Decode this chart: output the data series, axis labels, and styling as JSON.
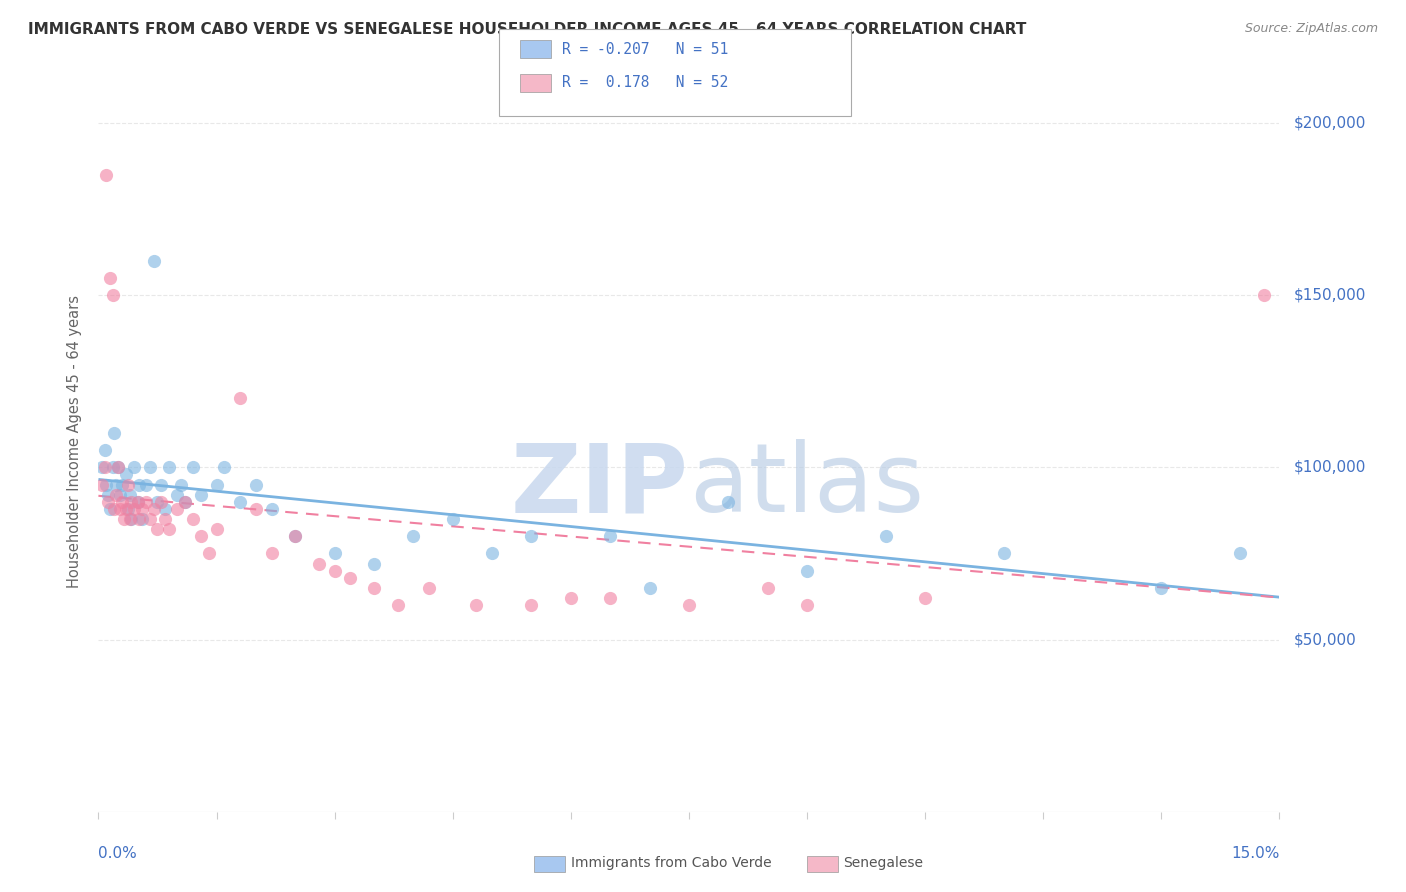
{
  "title": "IMMIGRANTS FROM CABO VERDE VS SENEGALESE HOUSEHOLDER INCOME AGES 45 - 64 YEARS CORRELATION CHART",
  "source": "Source: ZipAtlas.com",
  "ylabel": "Householder Income Ages 45 - 64 years",
  "xlim": [
    0.0,
    15.0
  ],
  "ylim": [
    0,
    215000
  ],
  "cabo_verde_color": "#7ab3e0",
  "cabo_verde_light": "#a8c8f0",
  "senegalese_color": "#f080a0",
  "senegalese_light": "#f5b8c8",
  "R_cv": -0.207,
  "N_cv": 51,
  "R_sn": 0.178,
  "N_sn": 52,
  "cabo_verde_x": [
    0.05,
    0.08,
    0.1,
    0.12,
    0.15,
    0.18,
    0.2,
    0.22,
    0.25,
    0.28,
    0.3,
    0.35,
    0.38,
    0.4,
    0.42,
    0.45,
    0.5,
    0.52,
    0.55,
    0.6,
    0.65,
    0.7,
    0.75,
    0.8,
    0.85,
    0.9,
    1.0,
    1.05,
    1.1,
    1.2,
    1.3,
    1.5,
    1.6,
    1.8,
    2.0,
    2.2,
    2.5,
    3.0,
    3.5,
    4.0,
    4.5,
    5.0,
    5.5,
    6.5,
    7.0,
    8.0,
    9.0,
    10.0,
    11.5,
    13.5,
    14.5
  ],
  "cabo_verde_y": [
    100000,
    105000,
    95000,
    92000,
    88000,
    100000,
    110000,
    95000,
    100000,
    92000,
    95000,
    98000,
    88000,
    92000,
    85000,
    100000,
    90000,
    95000,
    85000,
    95000,
    100000,
    160000,
    90000,
    95000,
    88000,
    100000,
    92000,
    95000,
    90000,
    100000,
    92000,
    95000,
    100000,
    90000,
    95000,
    88000,
    80000,
    75000,
    72000,
    80000,
    85000,
    75000,
    80000,
    80000,
    65000,
    90000,
    70000,
    80000,
    75000,
    65000,
    75000
  ],
  "senegalese_x": [
    0.05,
    0.08,
    0.1,
    0.12,
    0.15,
    0.18,
    0.2,
    0.22,
    0.25,
    0.28,
    0.3,
    0.32,
    0.35,
    0.38,
    0.4,
    0.42,
    0.45,
    0.5,
    0.52,
    0.55,
    0.6,
    0.65,
    0.7,
    0.75,
    0.8,
    0.85,
    0.9,
    1.0,
    1.1,
    1.2,
    1.3,
    1.4,
    1.5,
    1.8,
    2.0,
    2.2,
    2.5,
    2.8,
    3.0,
    3.2,
    3.5,
    3.8,
    4.2,
    4.8,
    5.5,
    6.0,
    6.5,
    7.5,
    8.5,
    9.0,
    10.5,
    14.8
  ],
  "senegalese_y": [
    95000,
    100000,
    185000,
    90000,
    155000,
    150000,
    88000,
    92000,
    100000,
    88000,
    90000,
    85000,
    88000,
    95000,
    85000,
    90000,
    88000,
    90000,
    85000,
    88000,
    90000,
    85000,
    88000,
    82000,
    90000,
    85000,
    82000,
    88000,
    90000,
    85000,
    80000,
    75000,
    82000,
    120000,
    88000,
    75000,
    80000,
    72000,
    70000,
    68000,
    65000,
    60000,
    65000,
    60000,
    60000,
    62000,
    62000,
    60000,
    65000,
    60000,
    62000,
    150000
  ],
  "ytick_labels": [
    "$50,000",
    "$100,000",
    "$150,000",
    "$200,000"
  ],
  "ytick_values": [
    50000,
    100000,
    150000,
    200000
  ],
  "background_color": "#ffffff",
  "grid_color": "#e8e8e8",
  "label_color": "#4472c4",
  "axis_label_color": "#666666"
}
